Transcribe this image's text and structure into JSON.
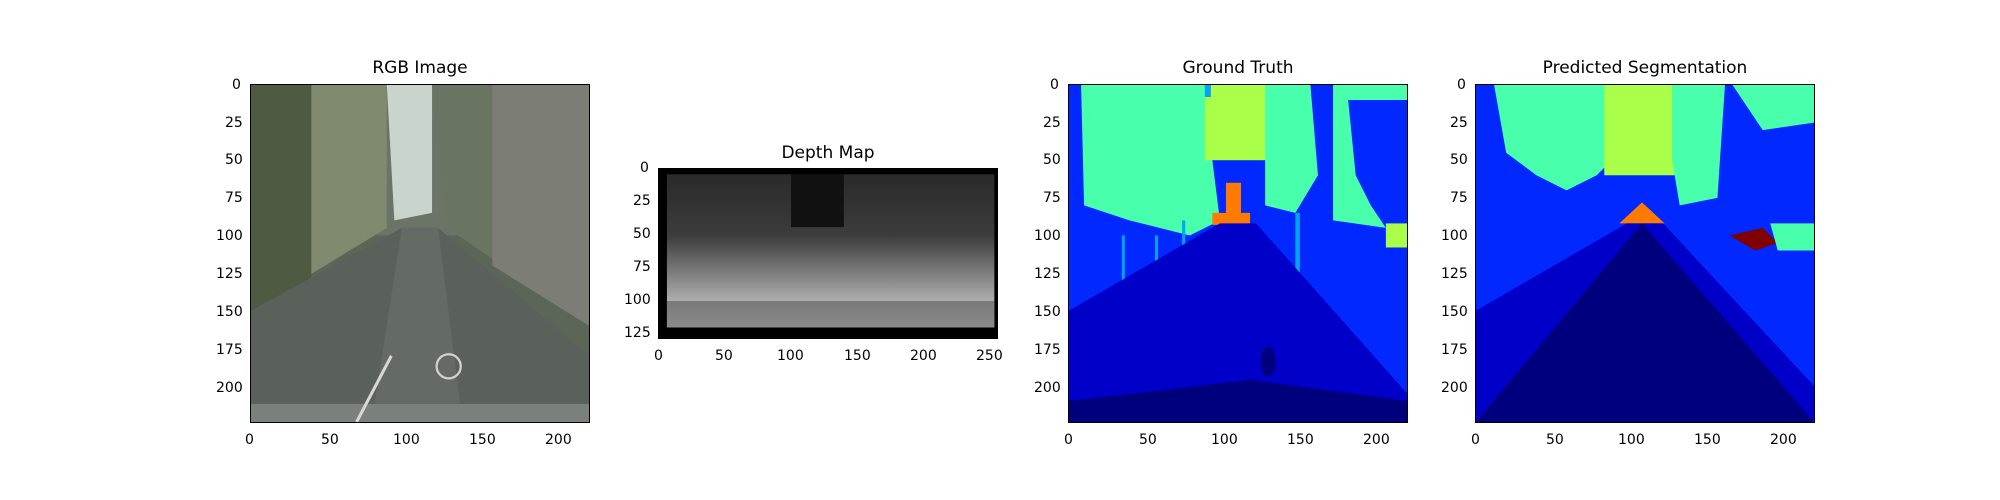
{
  "figure": {
    "panels": [
      {
        "id": "rgb",
        "title": "RGB Image",
        "xticks": [
          "0",
          "50",
          "100",
          "150",
          "200"
        ],
        "yticks": [
          "0",
          "25",
          "50",
          "75",
          "100",
          "125",
          "150",
          "175",
          "200"
        ]
      },
      {
        "id": "depth",
        "title": "Depth Map",
        "xticks": [
          "0",
          "50",
          "100",
          "150",
          "200",
          "250"
        ],
        "yticks": [
          "0",
          "25",
          "50",
          "75",
          "100",
          "125"
        ]
      },
      {
        "id": "gt",
        "title": "Ground Truth",
        "xticks": [
          "0",
          "50",
          "100",
          "150",
          "200"
        ],
        "yticks": [
          "0",
          "25",
          "50",
          "75",
          "100",
          "125",
          "150",
          "175",
          "200"
        ]
      },
      {
        "id": "pred",
        "title": "Predicted Segmentation",
        "xticks": [
          "0",
          "50",
          "100",
          "150",
          "200"
        ],
        "yticks": [
          "0",
          "25",
          "50",
          "75",
          "100",
          "125",
          "150",
          "175",
          "200"
        ]
      }
    ]
  },
  "colors": {
    "road": "#00007f",
    "sidewalk": "#0000c8",
    "building": "#0028ff",
    "vegetation": "#48ffac",
    "sky": "#aaff48",
    "pole": "#00a4ff",
    "traffic_sign": "#ff7a00",
    "car": "#800000"
  }
}
